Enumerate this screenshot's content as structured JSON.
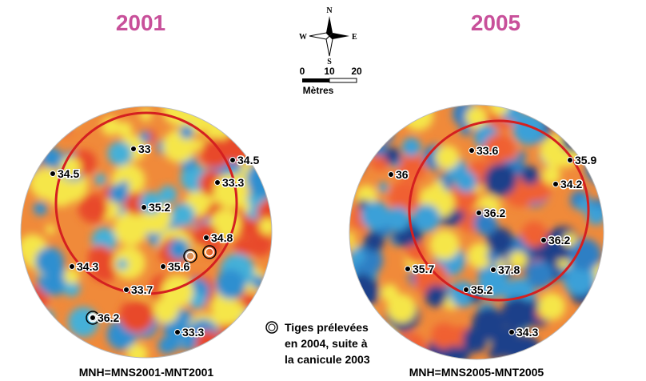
{
  "panels": [
    {
      "title": "2001",
      "caption": "MNH=MNS2001-MNT2001",
      "points": [
        {
          "label": 33
        },
        {
          "label": 34.5
        },
        {
          "label": 34.5
        },
        {
          "label": 33.3
        },
        {
          "label": 35.2
        },
        {
          "label": 34.8
        },
        {
          "label": 35.6
        },
        {
          "label": 34.3
        },
        {
          "label": 33.7
        },
        {
          "label": 36.2
        },
        {
          "label": 33.3
        }
      ]
    },
    {
      "title": "2005",
      "caption": "MNH=MNS2005-MNT2005",
      "points": [
        {
          "label": 33.6
        },
        {
          "label": 35.9
        },
        {
          "label": 36
        },
        {
          "label": 34.2
        },
        {
          "label": 36.2
        },
        {
          "label": 36.2
        },
        {
          "label": 35.7
        },
        {
          "label": 37.8
        },
        {
          "label": 35.2
        },
        {
          "label": 34.3
        }
      ]
    }
  ],
  "compass": {
    "n": "N",
    "s": "S",
    "e": "E",
    "w": "W"
  },
  "scale": {
    "ticks": [
      "0",
      "10",
      "20"
    ],
    "unit": "Mètres"
  },
  "legend": {
    "lines": [
      "Tiges prélevées",
      "en 2004, suite à",
      "la canicule 2003"
    ]
  }
}
